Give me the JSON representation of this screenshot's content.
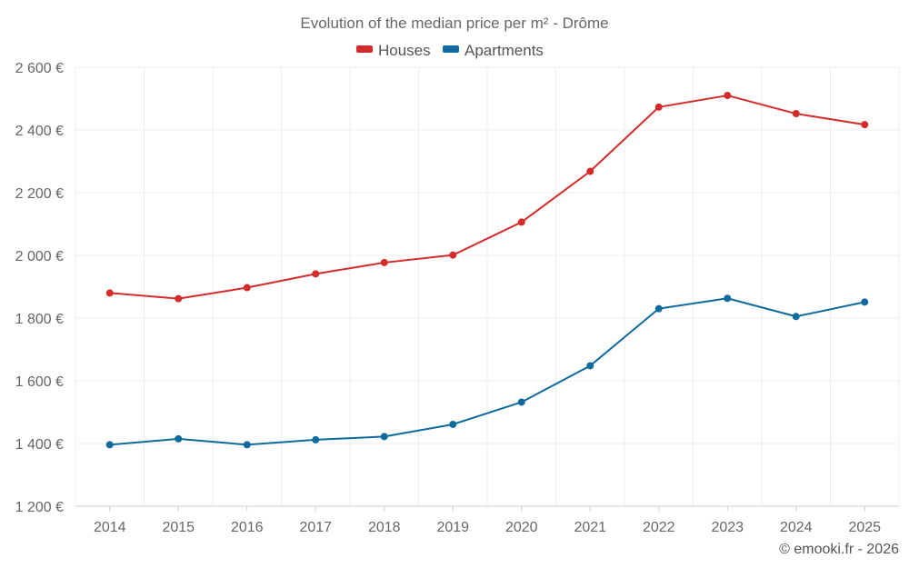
{
  "chart_data": {
    "type": "line",
    "title": "Evolution of the median price per m² - Drôme",
    "xlabel": "",
    "ylabel": "",
    "categories": [
      "2014",
      "2015",
      "2016",
      "2017",
      "2018",
      "2019",
      "2020",
      "2021",
      "2022",
      "2023",
      "2024",
      "2025"
    ],
    "series": [
      {
        "name": "Houses",
        "color": "#d52b2b",
        "values": [
          1880,
          1862,
          1897,
          1941,
          1977,
          2001,
          2106,
          2268,
          2473,
          2510,
          2452,
          2417
        ]
      },
      {
        "name": "Apartments",
        "color": "#0f6a9e",
        "values": [
          1396,
          1415,
          1396,
          1412,
          1422,
          1461,
          1532,
          1648,
          1830,
          1863,
          1805,
          1851
        ]
      }
    ],
    "ylim": [
      1200,
      2600
    ],
    "yticks": [
      1200,
      1400,
      1600,
      1800,
      2000,
      2200,
      2400,
      2600
    ],
    "ytick_labels": [
      "1 200 €",
      "1 400 €",
      "1 600 €",
      "1 800 €",
      "2 000 €",
      "2 200 €",
      "2 400 €",
      "2 600 €"
    ],
    "grid": true,
    "legend_position": "top-center"
  },
  "credit": "© emooki.fr - 2026"
}
